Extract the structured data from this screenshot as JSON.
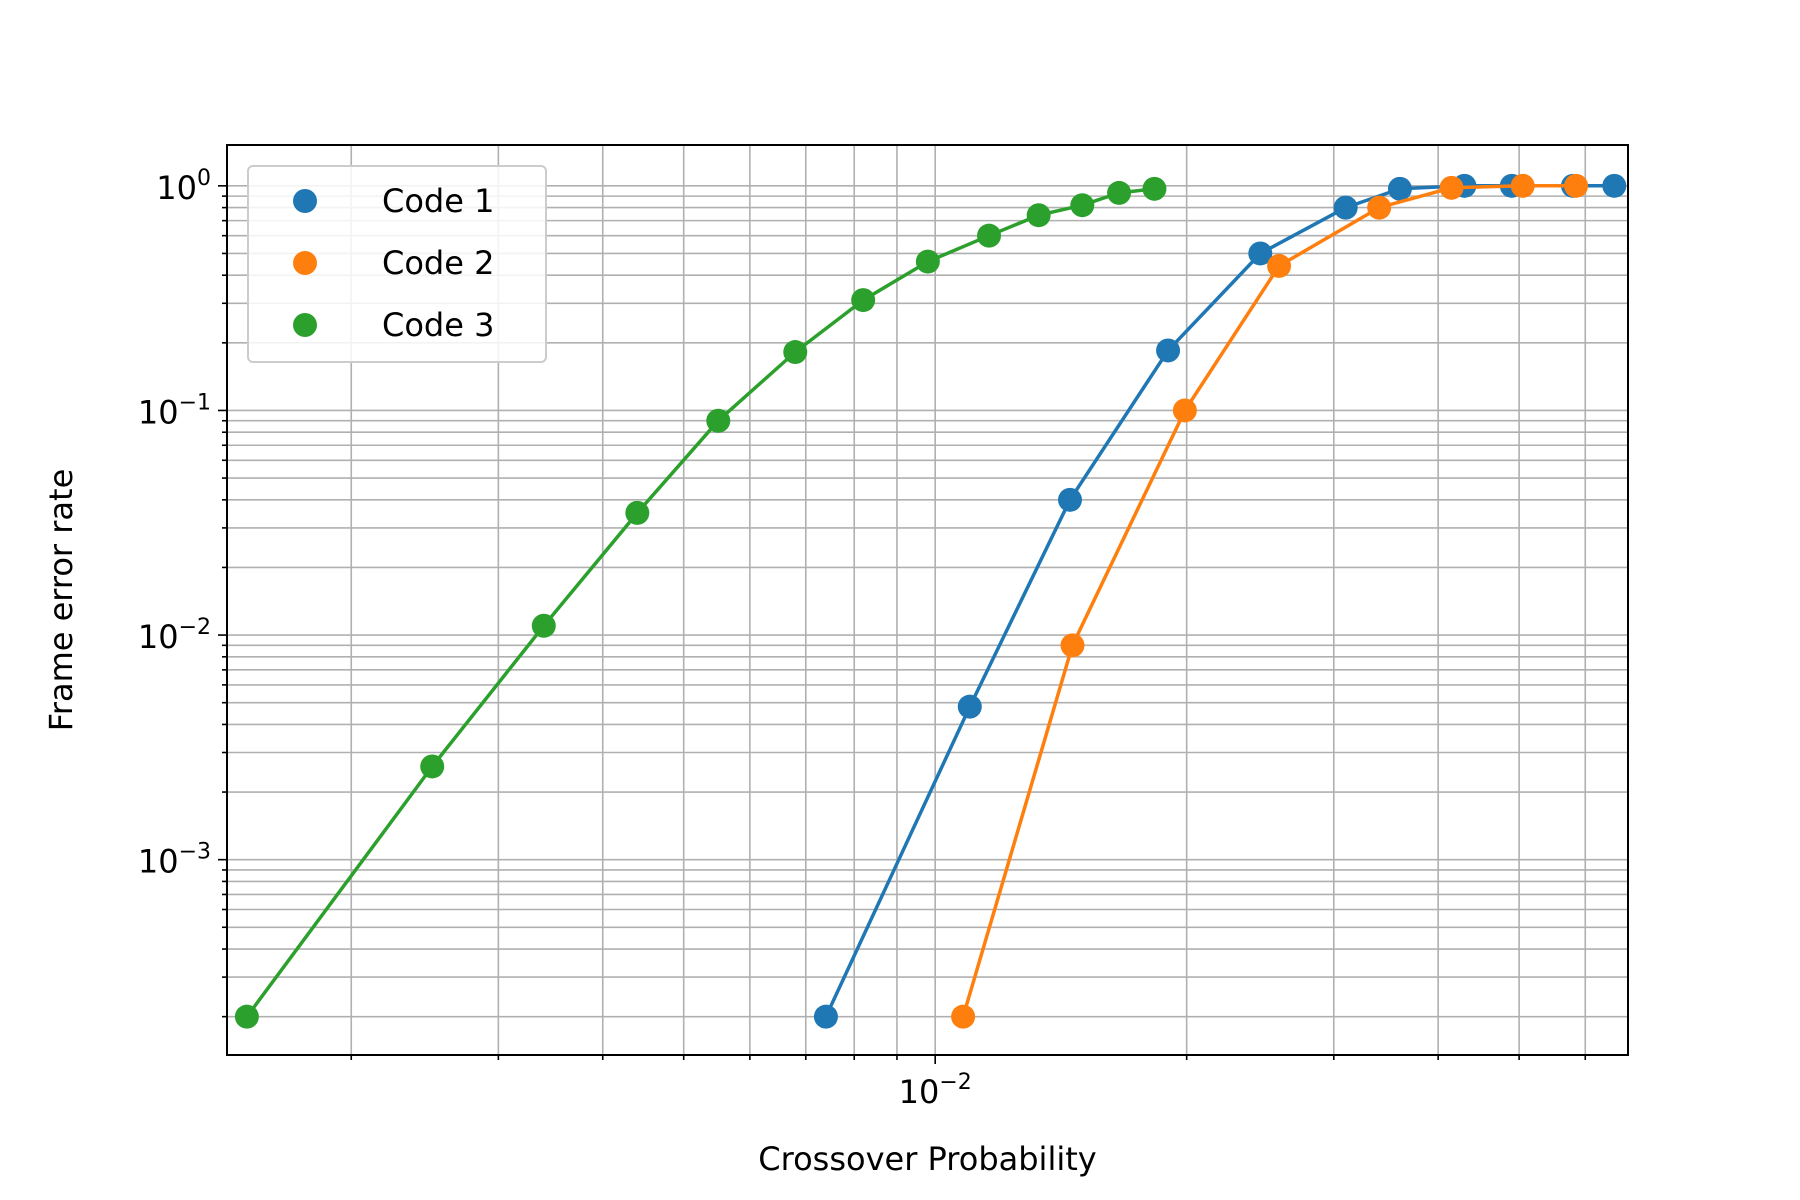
{
  "chart_data": {
    "type": "line",
    "xscale": "log",
    "yscale": "log",
    "xlabel": "Crossover Probability",
    "ylabel": "Frame error rate",
    "xlim": [
      0.00142,
      0.0675
    ],
    "ylim": [
      0.000135,
      1.52
    ],
    "grid": "major and minor",
    "legend_placement": "upper-left",
    "x_ticks": [
      {
        "value": 0.01,
        "base": "10",
        "exp": "−2"
      }
    ],
    "y_ticks": [
      {
        "value": 1,
        "base": "10",
        "exp": "0"
      },
      {
        "value": 0.1,
        "base": "10",
        "exp": "−1"
      },
      {
        "value": 0.01,
        "base": "10",
        "exp": "−2"
      },
      {
        "value": 0.001,
        "base": "10",
        "exp": "−3"
      }
    ],
    "series": [
      {
        "name": "Code 1",
        "color": "#1f77b4",
        "x": [
          0.0074,
          0.011,
          0.0145,
          0.019,
          0.0245,
          0.031,
          0.036,
          0.043,
          0.049,
          0.058,
          0.065
        ],
        "y": [
          0.0002,
          0.0048,
          0.04,
          0.185,
          0.5,
          0.8,
          0.97,
          1.0,
          1.0,
          1.0,
          1.0
        ]
      },
      {
        "name": "Code 2",
        "color": "#ff7f0e",
        "x": [
          0.0108,
          0.0146,
          0.0199,
          0.0258,
          0.034,
          0.0415,
          0.0505,
          0.0585
        ],
        "y": [
          0.0002,
          0.009,
          0.1,
          0.44,
          0.8,
          0.98,
          1.0,
          1.0
        ]
      },
      {
        "name": "Code 3",
        "color": "#2ca02c",
        "x": [
          0.0015,
          0.0025,
          0.0034,
          0.0044,
          0.0055,
          0.0068,
          0.0082,
          0.0098,
          0.0116,
          0.0133,
          0.015,
          0.0166,
          0.0183
        ],
        "y": [
          0.0002,
          0.0026,
          0.011,
          0.035,
          0.09,
          0.182,
          0.31,
          0.46,
          0.6,
          0.74,
          0.82,
          0.93,
          0.97
        ]
      }
    ]
  }
}
